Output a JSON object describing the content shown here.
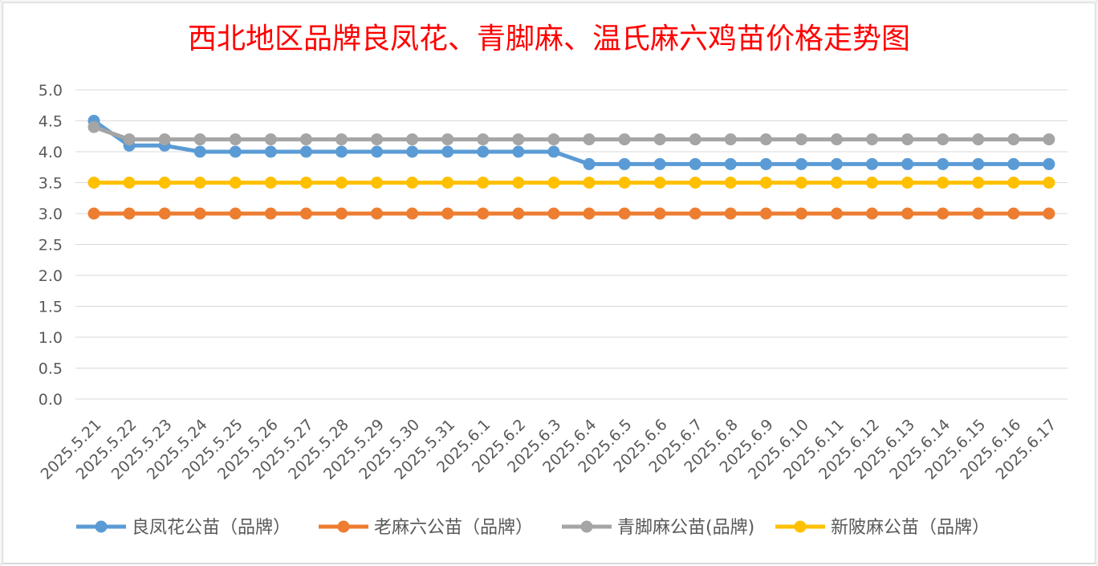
{
  "chart_data": {
    "type": "line",
    "title": "西北地区品牌良凤花、青脚麻、温氏麻六鸡苗价格走势图",
    "xlabel": "",
    "ylabel": "",
    "ylim": [
      0,
      5
    ],
    "ytick_labels": [
      "0.0",
      "0.5",
      "1.0",
      "1.5",
      "2.0",
      "2.5",
      "3.0",
      "3.5",
      "4.0",
      "4.5",
      "5.0"
    ],
    "grid": true,
    "legend_position": "bottom",
    "categories": [
      "2025.5.21",
      "2025.5.22",
      "2025.5.23",
      "2025.5.24",
      "2025.5.25",
      "2025.5.26",
      "2025.5.27",
      "2025.5.28",
      "2025.5.29",
      "2025.5.30",
      "2025.5.31",
      "2025.6.1",
      "2025.6.2",
      "2025.6.3",
      "2025.6.4",
      "2025.6.5",
      "2025.6.6",
      "2025.6.7",
      "2025.6.8",
      "2025.6.9",
      "2025.6.10",
      "2025.6.11",
      "2025.6.12",
      "2025.6.13",
      "2025.6.14",
      "2025.6.15",
      "2025.6.16",
      "2025.6.17"
    ],
    "series": [
      {
        "name": "良凤花公苗（品牌）",
        "color": "#5b9bd5",
        "values": [
          4.5,
          4.1,
          4.1,
          4.0,
          4.0,
          4.0,
          4.0,
          4.0,
          4.0,
          4.0,
          4.0,
          4.0,
          4.0,
          4.0,
          3.8,
          3.8,
          3.8,
          3.8,
          3.8,
          3.8,
          3.8,
          3.8,
          3.8,
          3.8,
          3.8,
          3.8,
          3.8,
          3.8
        ]
      },
      {
        "name": "老麻六公苗（品牌）",
        "color": "#ed7d31",
        "values": [
          3.0,
          3.0,
          3.0,
          3.0,
          3.0,
          3.0,
          3.0,
          3.0,
          3.0,
          3.0,
          3.0,
          3.0,
          3.0,
          3.0,
          3.0,
          3.0,
          3.0,
          3.0,
          3.0,
          3.0,
          3.0,
          3.0,
          3.0,
          3.0,
          3.0,
          3.0,
          3.0,
          3.0
        ]
      },
      {
        "name": "青脚麻公苗(品牌)",
        "color": "#a5a5a5",
        "values": [
          4.4,
          4.2,
          4.2,
          4.2,
          4.2,
          4.2,
          4.2,
          4.2,
          4.2,
          4.2,
          4.2,
          4.2,
          4.2,
          4.2,
          4.2,
          4.2,
          4.2,
          4.2,
          4.2,
          4.2,
          4.2,
          4.2,
          4.2,
          4.2,
          4.2,
          4.2,
          4.2,
          4.2
        ]
      },
      {
        "name": "新陂麻公苗（品牌）",
        "color": "#ffc000",
        "values": [
          3.5,
          3.5,
          3.5,
          3.5,
          3.5,
          3.5,
          3.5,
          3.5,
          3.5,
          3.5,
          3.5,
          3.5,
          3.5,
          3.5,
          3.5,
          3.5,
          3.5,
          3.5,
          3.5,
          3.5,
          3.5,
          3.5,
          3.5,
          3.5,
          3.5,
          3.5,
          3.5,
          3.5
        ]
      }
    ]
  }
}
